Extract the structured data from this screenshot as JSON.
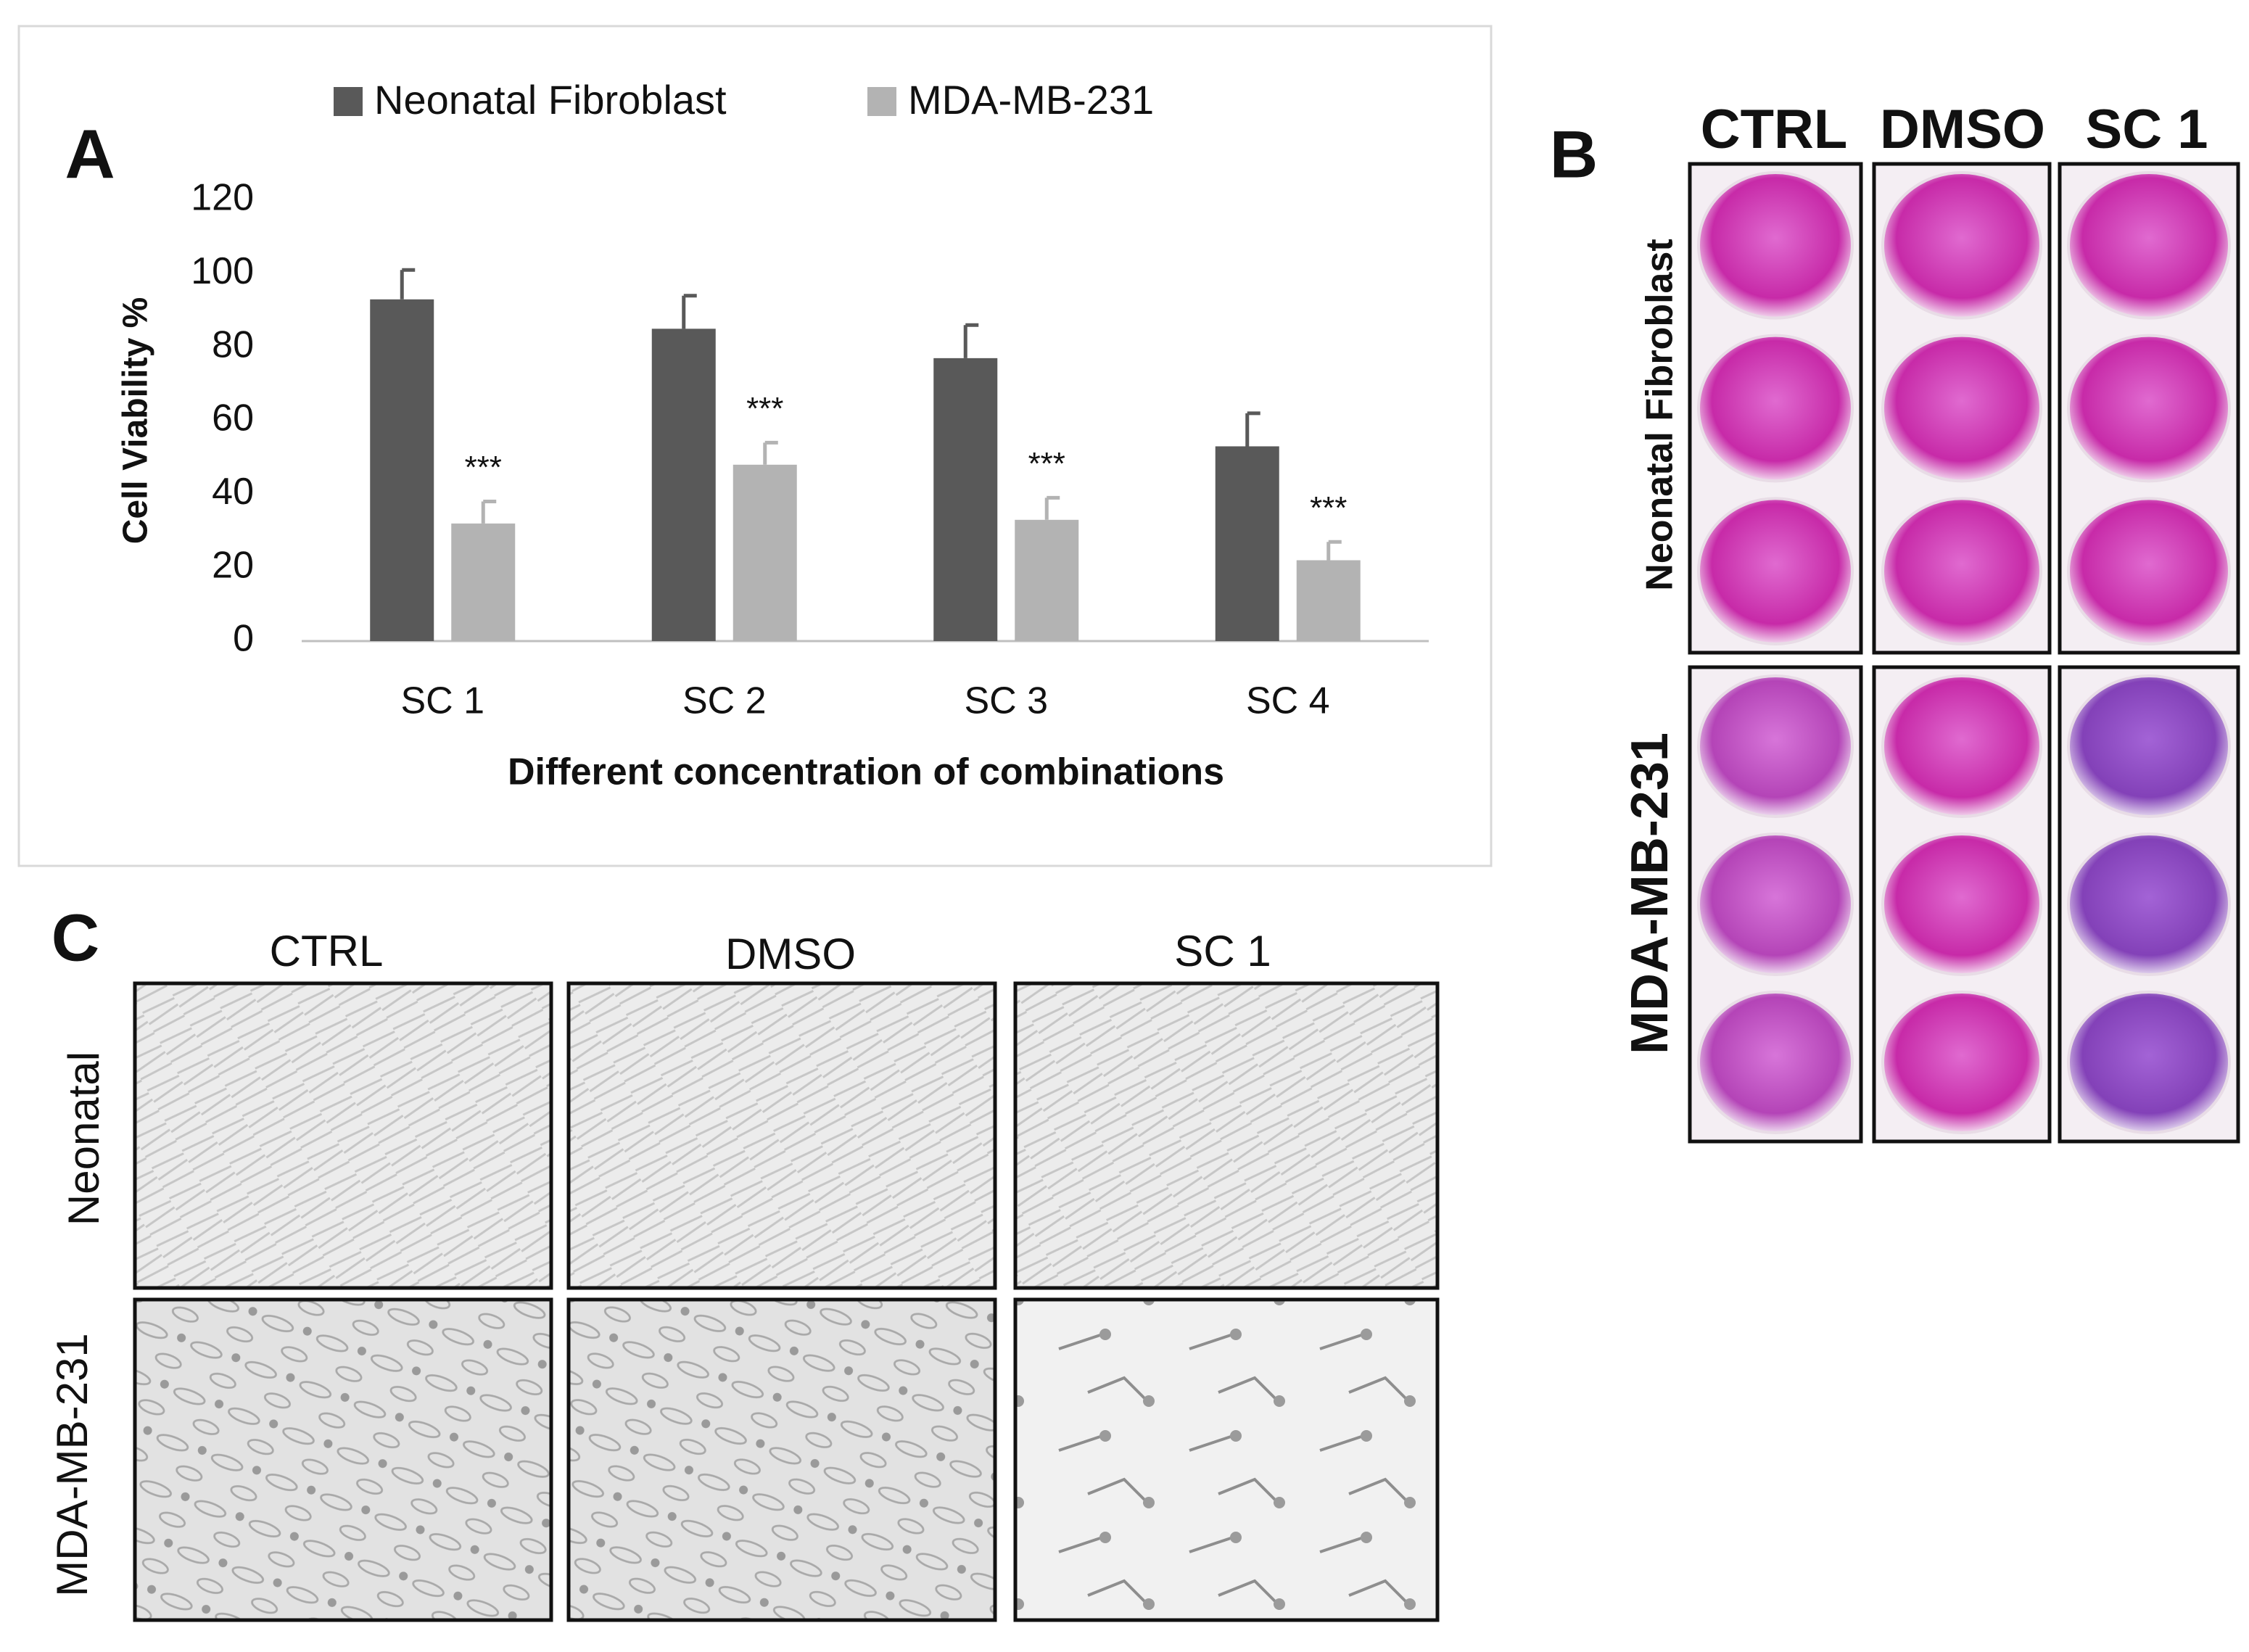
{
  "chart_data": {
    "type": "bar",
    "panel_label": "A",
    "ylabel": "Cell Viability %",
    "xlabel": "Different concentration of combinations",
    "categories": [
      "SC 1",
      "SC 2",
      "SC 3",
      "SC 4"
    ],
    "series": [
      {
        "name": "Neonatal Fibroblast",
        "color": "#595959",
        "values": [
          93,
          85,
          77,
          53
        ],
        "errors": [
          8,
          9,
          9,
          9
        ]
      },
      {
        "name": "MDA-MB-231",
        "color": "#b3b3b3",
        "values": [
          32,
          48,
          33,
          22
        ],
        "errors": [
          6,
          6,
          6,
          5
        ],
        "annotations": [
          "***",
          "***",
          "***",
          "***"
        ]
      }
    ],
    "ylim": [
      0,
      120
    ],
    "yticks": [
      0,
      20,
      40,
      60,
      80,
      100,
      120
    ],
    "legend": "top",
    "grid": false
  },
  "panel_b": {
    "label": "B",
    "columns": [
      "CTRL",
      "DMSO",
      "SC 1"
    ],
    "rows": [
      "Neonatal Fibroblast",
      "MDA-MB-231"
    ]
  },
  "panel_c": {
    "label": "C",
    "columns": [
      "CTRL",
      "DMSO",
      "SC 1"
    ],
    "rows": [
      "Neonatal",
      "MDA-MB-231"
    ]
  }
}
